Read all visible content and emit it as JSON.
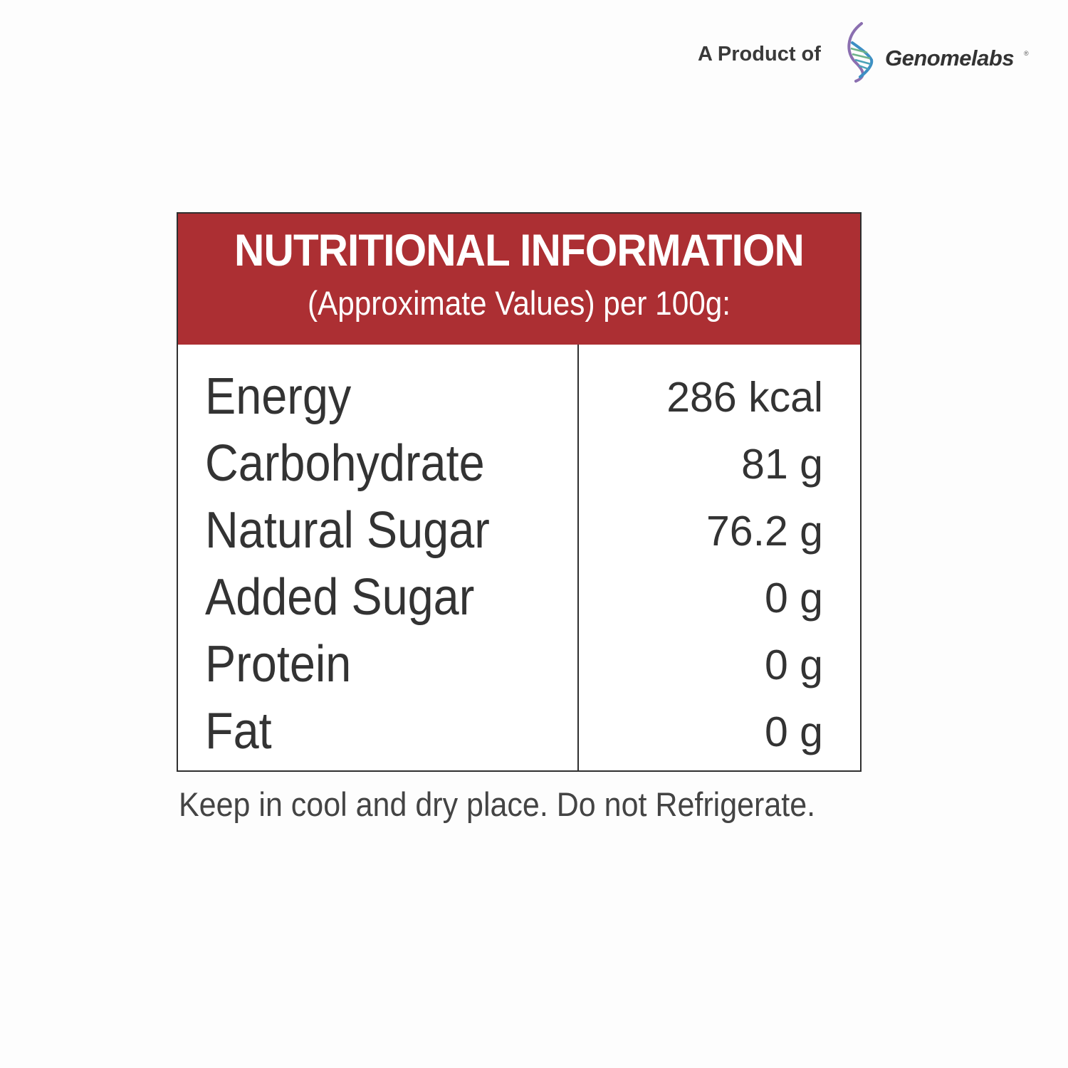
{
  "brand": {
    "prefix": "A Product of",
    "name": "Genomelabs",
    "registered_mark": "®",
    "logo_icon": "dna-helix-icon"
  },
  "panel": {
    "title": "NUTRITIONAL INFORMATION",
    "subtitle": "(Approximate Values) per 100g:",
    "header_color": "#ac2f33",
    "rows": [
      {
        "name": "Energy",
        "value": "286 kcal"
      },
      {
        "name": "Carbohydrate",
        "value": "81 g"
      },
      {
        "name": "Natural Sugar",
        "value": "76.2 g"
      },
      {
        "name": "Added Sugar",
        "value": "0 g"
      },
      {
        "name": "Protein",
        "value": "0 g"
      },
      {
        "name": "Fat",
        "value": "0 g"
      }
    ]
  },
  "footer": {
    "storage_note": "Keep in cool and dry place. Do not Refrigerate."
  }
}
